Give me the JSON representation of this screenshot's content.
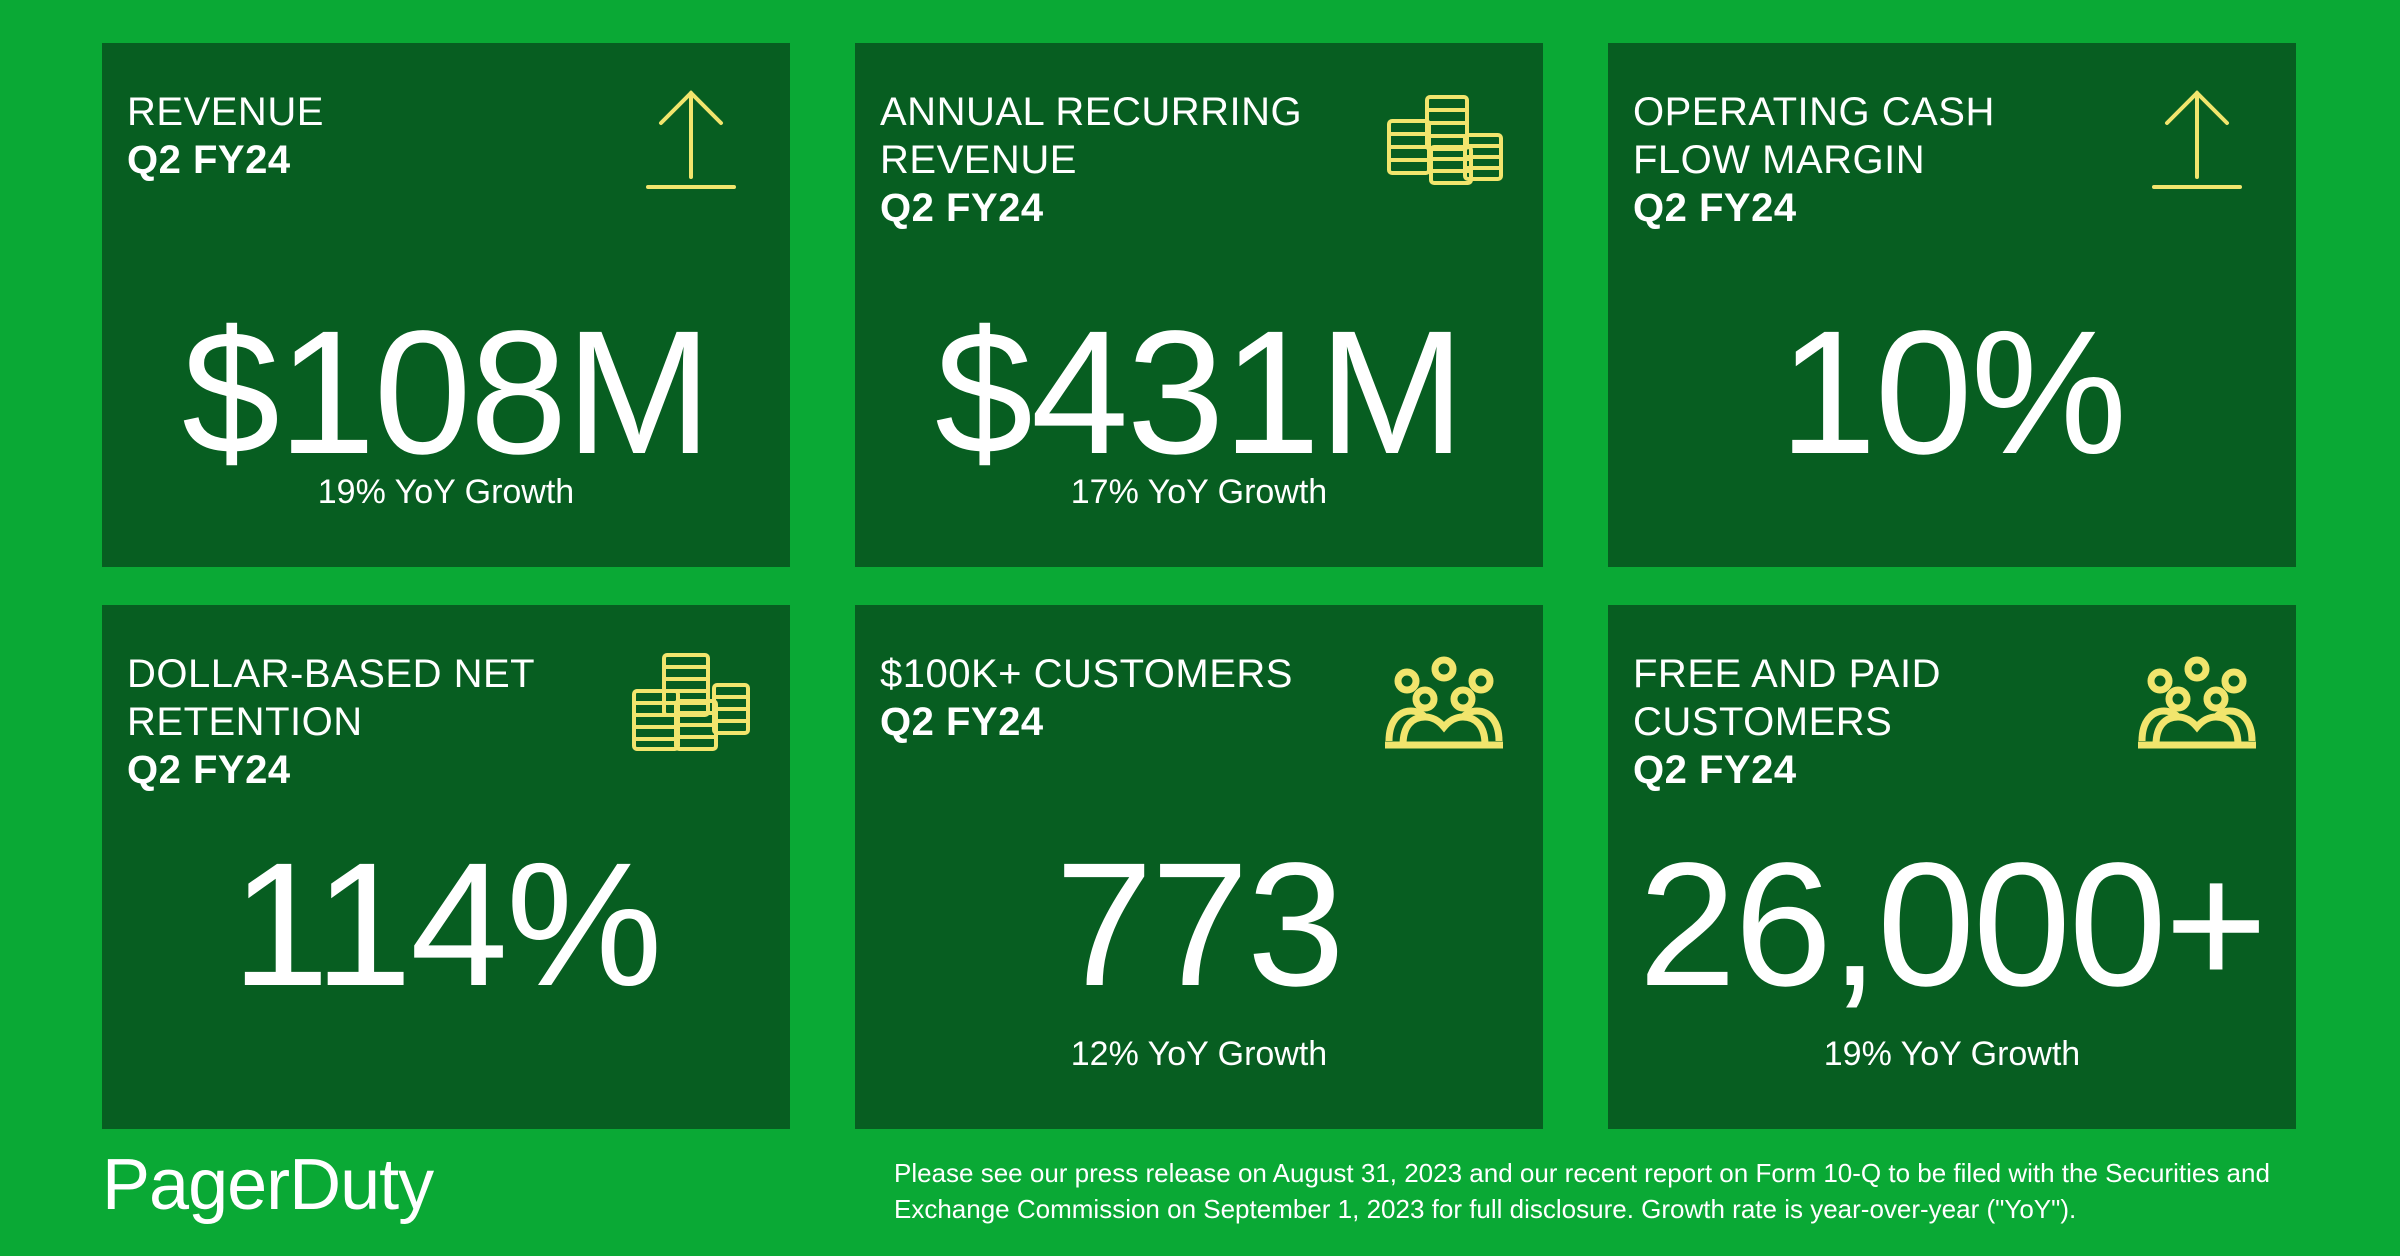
{
  "colors": {
    "background": "#0aa935",
    "card": "#075e21",
    "icon": "#f1e56d",
    "text": "#ffffff"
  },
  "cards": [
    {
      "title_lines": [
        "REVENUE"
      ],
      "period": "Q2 FY24",
      "value": "$108M",
      "growth": "19% YoY Growth",
      "icon": "arrow-up-icon"
    },
    {
      "title_lines": [
        "ANNUAL RECURRING",
        "REVENUE"
      ],
      "period": "Q2 FY24",
      "value": "$431M",
      "growth": "17% YoY Growth",
      "icon": "coin-stack-icon"
    },
    {
      "title_lines": [
        "OPERATING CASH",
        "FLOW MARGIN"
      ],
      "period": "Q2 FY24",
      "value": "10%",
      "growth": "",
      "icon": "arrow-up-icon"
    },
    {
      "title_lines": [
        "DOLLAR-BASED NET",
        "RETENTION"
      ],
      "period": "Q2 FY24",
      "value": "114%",
      "growth": "",
      "icon": "coin-stack-icon"
    },
    {
      "title_lines": [
        "$100K+ CUSTOMERS"
      ],
      "period": "Q2 FY24",
      "value": "773",
      "growth": "12% YoY Growth",
      "icon": "people-group-icon"
    },
    {
      "title_lines": [
        "FREE AND PAID",
        "CUSTOMERS"
      ],
      "period": "Q2 FY24",
      "value": "26,000+",
      "growth": "19% YoY Growth",
      "icon": "people-group-icon"
    }
  ],
  "brand": {
    "logo_text": "PagerDuty"
  },
  "footnote": "Please see our press release on August 31, 2023 and our recent report on Form 10-Q to be filed with the Securities and Exchange Commission on September 1, 2023 for full disclosure. Growth rate is year-over-year (\"YoY\")."
}
